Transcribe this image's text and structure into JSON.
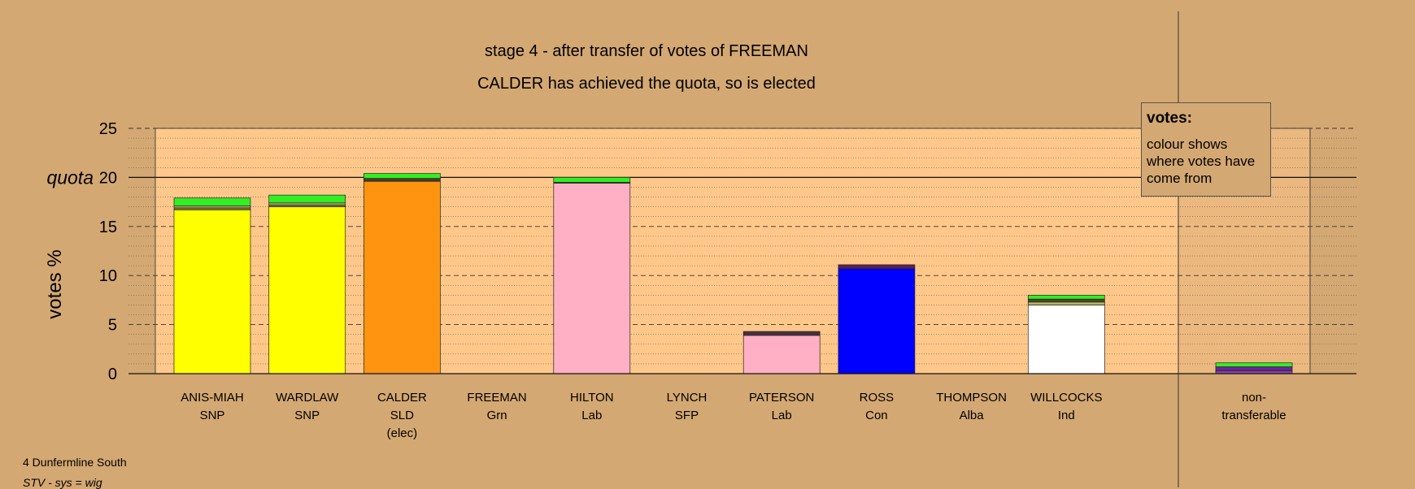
{
  "chart_data": {
    "type": "bar",
    "title": "stage 4 - after transfer of votes of FREEMAN",
    "subtitle": "CALDER has achieved the quota, so is elected",
    "ylabel": "votes %",
    "ylim": [
      0,
      25
    ],
    "yticks": [
      "0",
      "5",
      "10",
      "15",
      "20",
      "25"
    ],
    "quota_label": "quota",
    "quota": 20,
    "categories": [
      {
        "name": "ANIS-MIAH",
        "party": "SNP",
        "note": ""
      },
      {
        "name": "WARDLAW",
        "party": "SNP",
        "note": ""
      },
      {
        "name": "CALDER",
        "party": "SLD",
        "note": "(elec)"
      },
      {
        "name": "FREEMAN",
        "party": "Grn",
        "note": ""
      },
      {
        "name": "HILTON",
        "party": "Lab",
        "note": ""
      },
      {
        "name": "LYNCH",
        "party": "SFP",
        "note": ""
      },
      {
        "name": "PATERSON",
        "party": "Lab",
        "note": ""
      },
      {
        "name": "ROSS",
        "party": "Con",
        "note": ""
      },
      {
        "name": "THOMPSON",
        "party": "Alba",
        "note": ""
      },
      {
        "name": "WILLCOCKS",
        "party": "Ind",
        "note": ""
      }
    ],
    "bars": [
      {
        "segments": [
          {
            "value": 16.7,
            "color": "#ffff00"
          },
          {
            "value": 0.2,
            "color": "#7a7a3a"
          },
          {
            "value": 0.2,
            "color": "#b8b860"
          },
          {
            "value": 0.8,
            "color": "#33ee22"
          }
        ]
      },
      {
        "segments": [
          {
            "value": 17.0,
            "color": "#ffff00"
          },
          {
            "value": 0.2,
            "color": "#7a7a3a"
          },
          {
            "value": 0.2,
            "color": "#b8b860"
          },
          {
            "value": 0.8,
            "color": "#33ee22"
          }
        ]
      },
      {
        "segments": [
          {
            "value": 19.6,
            "color": "#ff9410"
          },
          {
            "value": 0.3,
            "color": "#4a3a2a"
          },
          {
            "value": 0.5,
            "color": "#33ee22"
          }
        ]
      },
      {
        "segments": []
      },
      {
        "segments": [
          {
            "value": 19.4,
            "color": "#ffb0c4"
          },
          {
            "value": 0.1,
            "color": "#555555"
          },
          {
            "value": 0.5,
            "color": "#33ee22"
          }
        ]
      },
      {
        "segments": []
      },
      {
        "segments": [
          {
            "value": 3.9,
            "color": "#ffb0c4"
          },
          {
            "value": 0.4,
            "color": "#4a3040"
          }
        ]
      },
      {
        "segments": [
          {
            "value": 10.7,
            "color": "#0000ff"
          },
          {
            "value": 0.4,
            "color": "#5a2050"
          }
        ]
      },
      {
        "segments": []
      },
      {
        "segments": [
          {
            "value": 7.0,
            "color": "#ffffff"
          },
          {
            "value": 0.3,
            "color": "#b8b860"
          },
          {
            "value": 0.3,
            "color": "#4a4a2a"
          },
          {
            "value": 0.4,
            "color": "#33ee22"
          }
        ]
      }
    ],
    "nontransferable": {
      "label_line1": "non-",
      "label_line2": "transferable",
      "segments": [
        {
          "value": 0.3,
          "color": "#8844aa"
        },
        {
          "value": 0.4,
          "color": "#6a20a0"
        },
        {
          "value": 0.4,
          "color": "#33ee22"
        }
      ]
    },
    "colors": {
      "background": "#d4a872",
      "plot_area": "#ffc88a"
    }
  },
  "legend": {
    "title": "votes:",
    "body": "colour shows where votes have come from"
  },
  "footer": {
    "line1": "4 Dunfermline South",
    "line2": "STV - sys = wig"
  }
}
